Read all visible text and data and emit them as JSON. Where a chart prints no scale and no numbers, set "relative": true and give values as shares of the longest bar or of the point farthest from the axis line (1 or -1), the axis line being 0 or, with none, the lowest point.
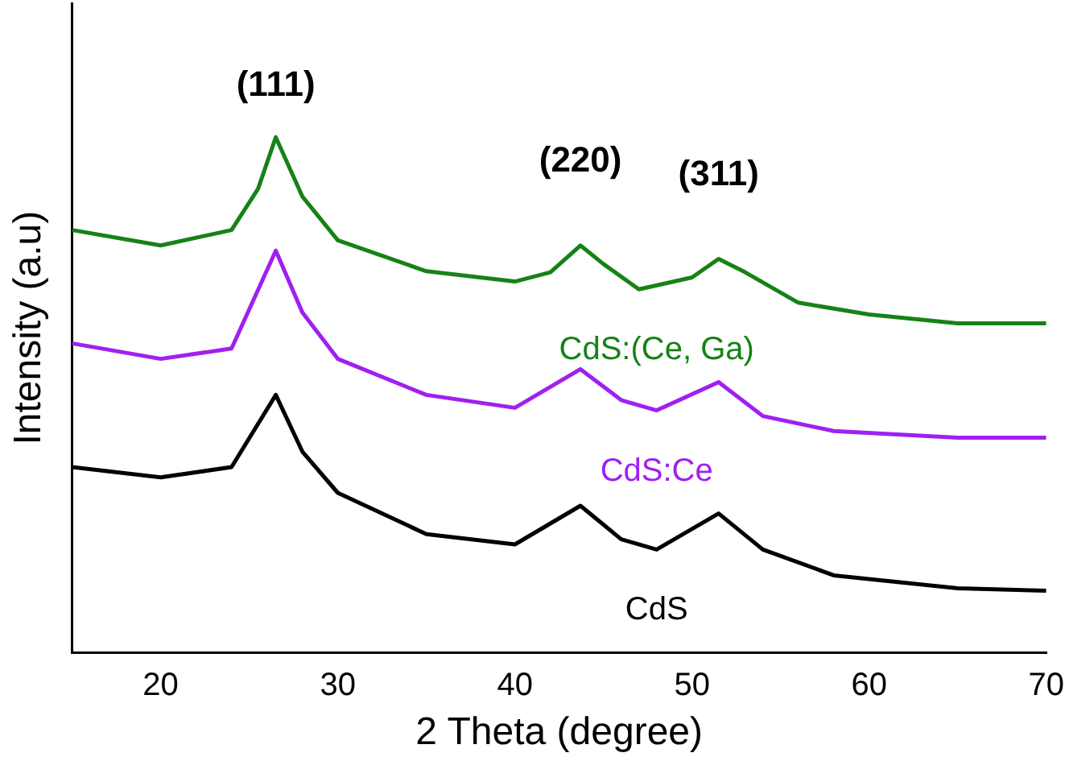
{
  "chart_data": {
    "type": "line",
    "xlabel": "2 Theta (degree)",
    "ylabel": "Intensity (a.u)",
    "relative": true,
    "xlim": [
      15,
      70
    ],
    "xticks": [
      20,
      30,
      40,
      50,
      60,
      70
    ],
    "grid": false,
    "legend": false,
    "marker": "none",
    "line_style": "solid",
    "series": [
      {
        "name": "CdS:(Ce, Ga)",
        "color": "#168216",
        "x": [
          15,
          20,
          24,
          25.5,
          26.5,
          28,
          30,
          35,
          40,
          42,
          43.7,
          45,
          47,
          50,
          51.5,
          53,
          56,
          60,
          65,
          70
        ],
        "values": [
          0.82,
          0.79,
          0.82,
          0.9,
          1.0,
          0.885,
          0.8,
          0.74,
          0.72,
          0.738,
          0.79,
          0.754,
          0.705,
          0.728,
          0.764,
          0.738,
          0.679,
          0.656,
          0.639,
          0.639
        ]
      },
      {
        "name": "CdS:Ce",
        "color": "#a020f0",
        "x": [
          15,
          20,
          24,
          26.5,
          28,
          30,
          35,
          40,
          43.7,
          46,
          48,
          51.5,
          54,
          58,
          65,
          70
        ],
        "values": [
          0.6,
          0.57,
          0.59,
          0.78,
          0.66,
          0.57,
          0.5,
          0.475,
          0.55,
          0.49,
          0.47,
          0.525,
          0.459,
          0.43,
          0.417,
          0.417
        ]
      },
      {
        "name": "CdS",
        "color": "#000000",
        "x": [
          15,
          20,
          24,
          26.5,
          28,
          30,
          35,
          40,
          43.7,
          46,
          48,
          51.5,
          54,
          58,
          65,
          70
        ],
        "values": [
          0.36,
          0.34,
          0.36,
          0.5,
          0.39,
          0.31,
          0.23,
          0.21,
          0.285,
          0.22,
          0.2,
          0.27,
          0.2,
          0.15,
          0.125,
          0.12
        ]
      }
    ],
    "annotations": [
      "(111)",
      "(220)",
      "(311)"
    ]
  }
}
